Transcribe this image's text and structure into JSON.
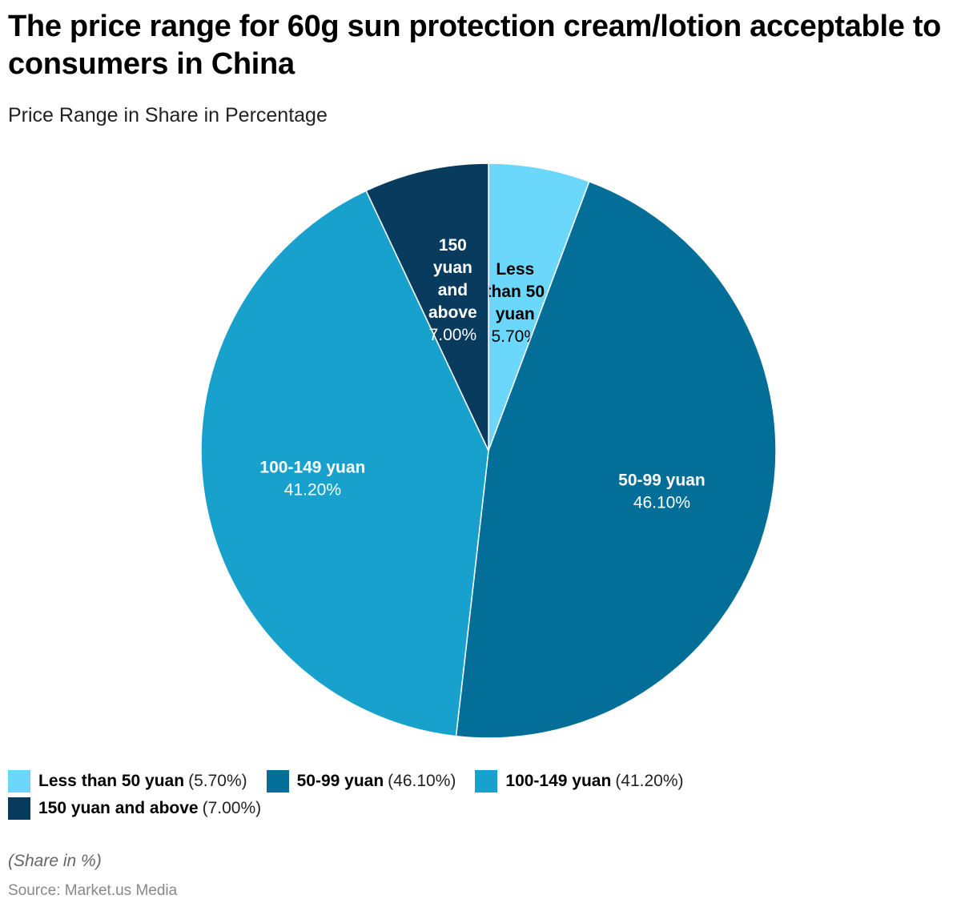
{
  "title": "The price range for 60g sun protection cream/lotion acceptable to consumers in China",
  "subtitle": "Price Range in Share in Percentage",
  "note": "(Share in %)",
  "source": "Source: Market.us Media",
  "chart_data": {
    "type": "pie",
    "title": "The price range for 60g sun protection cream/lotion acceptable to consumers in China",
    "subtitle": "Price Range in Share in Percentage",
    "start": "top, clockwise",
    "legend_position": "bottom",
    "slices": [
      {
        "label": "Less than 50 yuan",
        "value": 5.7,
        "display": "5.70%",
        "color": "#6ad7fb",
        "label_lines": [
          "Less",
          "than 50",
          "yuan"
        ],
        "text_color": "#000000"
      },
      {
        "label": "50-99 yuan",
        "value": 46.1,
        "display": "46.10%",
        "color": "#036e97",
        "label_lines": [
          "50-99 yuan"
        ],
        "text_color": "#ffffff"
      },
      {
        "label": "100-149 yuan",
        "value": 41.2,
        "display": "41.20%",
        "color": "#18a1cd",
        "label_lines": [
          "100-149 yuan"
        ],
        "text_color": "#ffffff"
      },
      {
        "label": "150 yuan and above",
        "value": 7.0,
        "display": "7.00%",
        "color": "#093b5f",
        "label_lines": [
          "150",
          "yuan",
          "and",
          "above"
        ],
        "text_color": "#ffffff"
      }
    ]
  },
  "legend": [
    {
      "label": "Less than 50 yuan",
      "value": "(5.70%)",
      "color": "#6ad7fb"
    },
    {
      "label": "50-99 yuan",
      "value": "(46.10%)",
      "color": "#036e97"
    },
    {
      "label": "100-149 yuan",
      "value": "(41.20%)",
      "color": "#18a1cd"
    },
    {
      "label": "150 yuan and above",
      "value": "(7.00%)",
      "color": "#093b5f"
    }
  ]
}
